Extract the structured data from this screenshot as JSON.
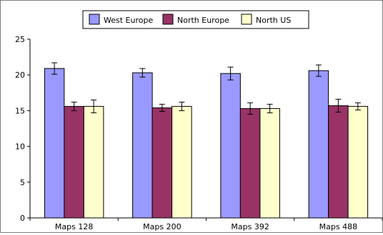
{
  "chart_data": {
    "type": "bar",
    "categories": [
      "Maps 128",
      "Maps 200",
      "Maps 392",
      "Maps 488"
    ],
    "series": [
      {
        "name": "West Europe",
        "color": "#9999ff",
        "values": [
          20.9,
          20.3,
          20.2,
          20.6
        ],
        "errors": [
          0.8,
          0.6,
          0.9,
          0.8
        ]
      },
      {
        "name": "North Europe",
        "color": "#993366",
        "values": [
          15.6,
          15.4,
          15.3,
          15.7
        ],
        "errors": [
          0.6,
          0.5,
          0.8,
          0.9
        ]
      },
      {
        "name": "North US",
        "color": "#ffffcc",
        "values": [
          15.6,
          15.6,
          15.3,
          15.6
        ],
        "errors": [
          0.9,
          0.6,
          0.6,
          0.5
        ]
      }
    ],
    "yticks": [
      0,
      5,
      10,
      15,
      20,
      25
    ],
    "ylim": [
      0,
      25
    ],
    "legend_position": "top",
    "grid": false,
    "error_bars": true
  }
}
